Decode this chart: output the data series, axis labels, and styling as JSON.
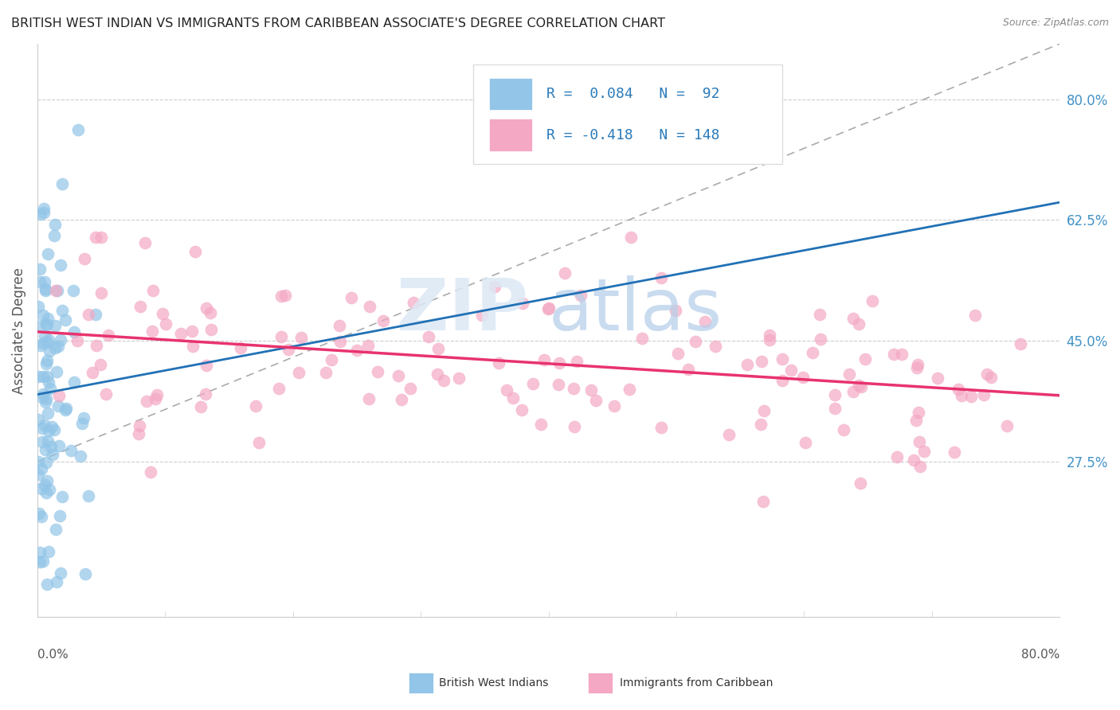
{
  "title": "BRITISH WEST INDIAN VS IMMIGRANTS FROM CARIBBEAN ASSOCIATE'S DEGREE CORRELATION CHART",
  "source": "Source: ZipAtlas.com",
  "ylabel": "Associate's Degree",
  "ytick_labels": [
    "80.0%",
    "62.5%",
    "45.0%",
    "27.5%"
  ],
  "ytick_values": [
    0.8,
    0.625,
    0.45,
    0.275
  ],
  "xlim": [
    0.0,
    0.8
  ],
  "ylim": [
    0.05,
    0.88
  ],
  "blue_color": "#92c5e8",
  "pink_color": "#f4a8c4",
  "blue_line_color": "#2171b5",
  "pink_line_color": "#e8336e",
  "dashed_line_color": "#aaaaaa",
  "background_color": "#ffffff",
  "watermark_zip_color": "#c8d8ee",
  "watermark_atlas_color": "#c8d8f4"
}
